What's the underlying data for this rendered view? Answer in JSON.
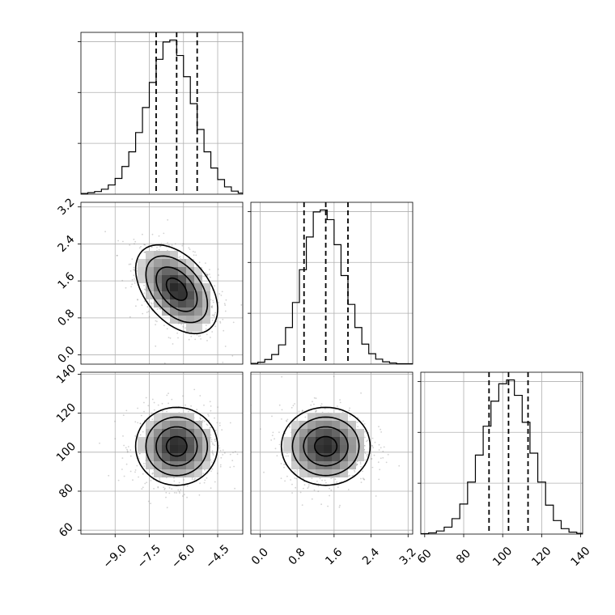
{
  "chart_data": {
    "type": "corner",
    "grid": true,
    "parameters": [
      {
        "range": [
          -10.5,
          -3.4
        ],
        "ticks": [
          -9.0,
          -7.5,
          -6.0,
          -4.5
        ],
        "tick_labels": [
          "−9.0",
          "−7.5",
          "−6.0",
          "−4.5"
        ],
        "mean": -6.3,
        "std": 0.9,
        "quantiles": [
          -7.2,
          -6.3,
          -5.4
        ]
      },
      {
        "range": [
          -0.2,
          3.3
        ],
        "ticks": [
          0.0,
          0.8,
          1.6,
          2.4,
          3.2
        ],
        "tick_labels": [
          "0.0",
          "0.8",
          "1.6",
          "2.4",
          "3.2"
        ],
        "mean": 1.42,
        "std": 0.48,
        "quantiles": [
          0.95,
          1.42,
          1.9
        ]
      },
      {
        "range": [
          58,
          141
        ],
        "ticks": [
          60,
          80,
          100,
          120,
          140
        ],
        "tick_labels": [
          "60",
          "80",
          "100",
          "120",
          "140"
        ],
        "mean": 103,
        "std": 10,
        "quantiles": [
          93,
          103,
          113
        ]
      }
    ],
    "histograms": [
      {
        "param": 0,
        "bin_edges": [
          -10.5,
          -10.2,
          -9.9,
          -9.6,
          -9.3,
          -9.0,
          -8.7,
          -8.4,
          -8.1,
          -7.8,
          -7.5,
          -7.2,
          -6.9,
          -6.6,
          -6.3,
          -6.0,
          -5.7,
          -5.4,
          -5.1,
          -4.8,
          -4.5,
          -4.2,
          -3.9,
          -3.6,
          -3.4
        ],
        "counts": [
          2,
          4,
          7,
          13,
          24,
          41,
          72,
          110,
          160,
          225,
          290,
          350,
          395,
          400,
          360,
          305,
          235,
          168,
          110,
          68,
          38,
          19,
          8,
          3
        ]
      },
      {
        "param": 1,
        "bin_edges": [
          -0.2,
          -0.05,
          0.1,
          0.25,
          0.4,
          0.55,
          0.7,
          0.85,
          1.0,
          1.15,
          1.3,
          1.45,
          1.6,
          1.75,
          1.9,
          2.05,
          2.2,
          2.35,
          2.5,
          2.65,
          2.8,
          2.95,
          3.1,
          3.3
        ],
        "counts": [
          2,
          5,
          12,
          25,
          50,
          95,
          160,
          245,
          330,
          395,
          400,
          375,
          310,
          230,
          155,
          95,
          52,
          27,
          13,
          6,
          3,
          1,
          1
        ]
      },
      {
        "param": 2,
        "bin_edges": [
          58,
          62,
          66,
          70,
          74,
          78,
          82,
          86,
          90,
          94,
          98,
          102,
          106,
          110,
          114,
          118,
          122,
          126,
          130,
          134,
          138,
          141
        ],
        "counts": [
          1,
          3,
          8,
          18,
          40,
          78,
          135,
          205,
          280,
          345,
          390,
          400,
          360,
          290,
          210,
          135,
          75,
          35,
          14,
          5,
          2
        ]
      }
    ],
    "pairs": [
      {
        "x_param": 0,
        "y_param": 1,
        "correlation": -0.45
      },
      {
        "x_param": 0,
        "y_param": 2,
        "correlation": 0.0
      },
      {
        "x_param": 1,
        "y_param": 2,
        "correlation": 0.0
      }
    ]
  }
}
